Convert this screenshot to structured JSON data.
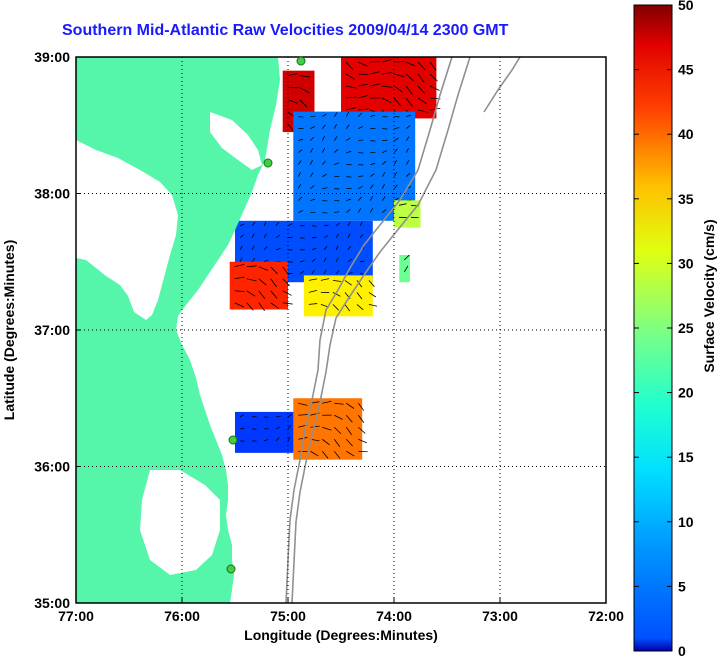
{
  "title": "Southern Mid-Atlantic Raw Velocities 2009/04/14 2300 GMT",
  "map": {
    "xlabel": "Longitude (Degrees:Minutes)",
    "ylabel": "Latitude (Degrees:Minutes)",
    "x_ticks": [
      "77:00",
      "76:00",
      "75:00",
      "74:00",
      "73:00",
      "72:00"
    ],
    "y_ticks": [
      "39:00",
      "38:00",
      "37:00",
      "36:00",
      "35:00"
    ],
    "lon_range": [
      -77,
      -72
    ],
    "lat_range": [
      35,
      39
    ],
    "land_color": "#55f5aa",
    "grid": "dotted"
  },
  "colorbar": {
    "label": "Surface Velocity (cm/s)",
    "ticks": [
      "0",
      "5",
      "10",
      "15",
      "20",
      "25",
      "30",
      "35",
      "40",
      "45",
      "50"
    ],
    "range": [
      0,
      50
    ],
    "colormap": "jet"
  },
  "chart_data": {
    "type": "heatmap",
    "title": "Southern Mid-Atlantic Raw Velocities 2009/04/14 2300 GMT",
    "xlabel": "Longitude (Degrees:Minutes)",
    "ylabel": "Latitude (Degrees:Minutes)",
    "xlim": [
      -77,
      -72
    ],
    "ylim": [
      35,
      39
    ],
    "value_label": "Surface Velocity (cm/s)",
    "value_range": [
      0,
      50
    ],
    "regions": [
      {
        "lon": [
          -74.5,
          -73.6
        ],
        "lat": [
          38.55,
          39.0
        ],
        "speed": 45
      },
      {
        "lon": [
          -75.05,
          -74.75
        ],
        "lat": [
          38.45,
          38.9
        ],
        "speed": 46
      },
      {
        "lon": [
          -74.95,
          -73.8
        ],
        "lat": [
          37.8,
          38.6
        ],
        "speed": 12
      },
      {
        "lon": [
          -74.0,
          -73.75
        ],
        "lat": [
          37.75,
          37.95
        ],
        "speed": 28
      },
      {
        "lon": [
          -75.5,
          -74.2
        ],
        "lat": [
          37.35,
          37.8
        ],
        "speed": 10
      },
      {
        "lon": [
          -75.55,
          -75.0
        ],
        "lat": [
          37.15,
          37.5
        ],
        "speed": 42
      },
      {
        "lon": [
          -74.85,
          -74.2
        ],
        "lat": [
          37.1,
          37.4
        ],
        "speed": 32
      },
      {
        "lon": [
          -75.5,
          -74.7
        ],
        "lat": [
          36.1,
          36.4
        ],
        "speed": 9
      },
      {
        "lon": [
          -74.95,
          -74.3
        ],
        "lat": [
          36.05,
          36.5
        ],
        "speed": 38
      },
      {
        "lon": [
          -73.95,
          -73.85
        ],
        "lat": [
          37.35,
          37.55
        ],
        "speed": 24
      }
    ]
  }
}
